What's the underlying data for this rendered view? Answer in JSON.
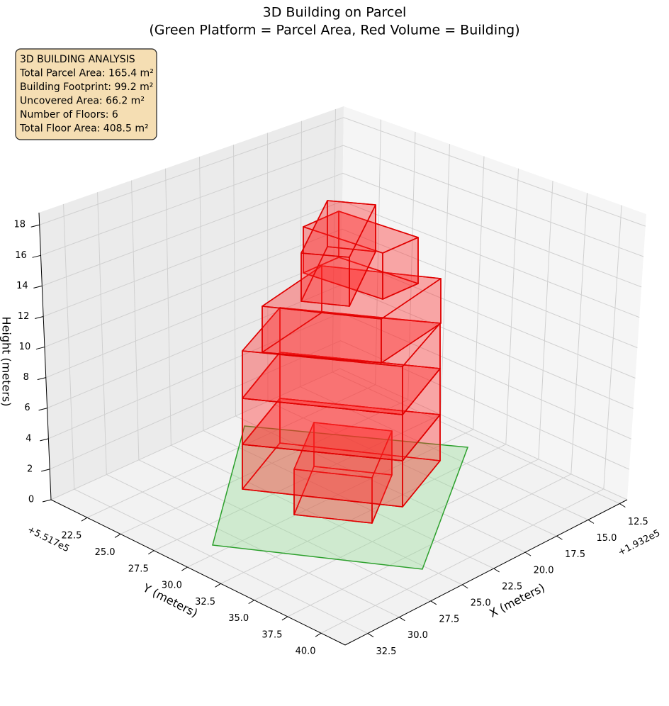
{
  "chart_data": {
    "type": "3d-box",
    "title": "3D Building on Parcel",
    "subtitle": "(Green Platform = Parcel Area, Red Volume = Building)",
    "x_label": "X (meters)",
    "y_label": "Y (meters)",
    "z_label": "Height (meters)",
    "x_offset_label": "+1.932e5",
    "y_offset_label": "+5.517e5",
    "xlim": [
      11.9,
      34.3
    ],
    "ylim": [
      19.8,
      41.8
    ],
    "zlim": [
      0,
      18.8
    ],
    "xticks": [
      12.5,
      {
        "value": 15,
        "label": "15.0"
      },
      17.5,
      {
        "value": 20,
        "label": "20.0"
      },
      22.5,
      {
        "value": 25,
        "label": "25.0"
      },
      27.5,
      {
        "value": 30,
        "label": "30.0"
      },
      32.5
    ],
    "yticks": [
      22.5,
      {
        "value": 25,
        "label": "25.0"
      },
      27.5,
      {
        "value": 30,
        "label": "30.0"
      },
      32.5,
      {
        "value": 35,
        "label": "35.0"
      },
      37.5,
      {
        "value": 40,
        "label": "40.0"
      }
    ],
    "zticks": [
      0,
      2,
      4,
      6,
      8,
      10,
      12,
      14,
      16,
      18
    ],
    "grid": true,
    "annotation": [
      "3D BUILDING ANALYSIS",
      "Total Parcel Area: 165.4 m²",
      "Building Footprint: 99.2 m²",
      "Uncovered Area: 66.2 m²",
      "Number of Floors: 6",
      "Total Floor Area: 408.5 m²"
    ]
  }
}
